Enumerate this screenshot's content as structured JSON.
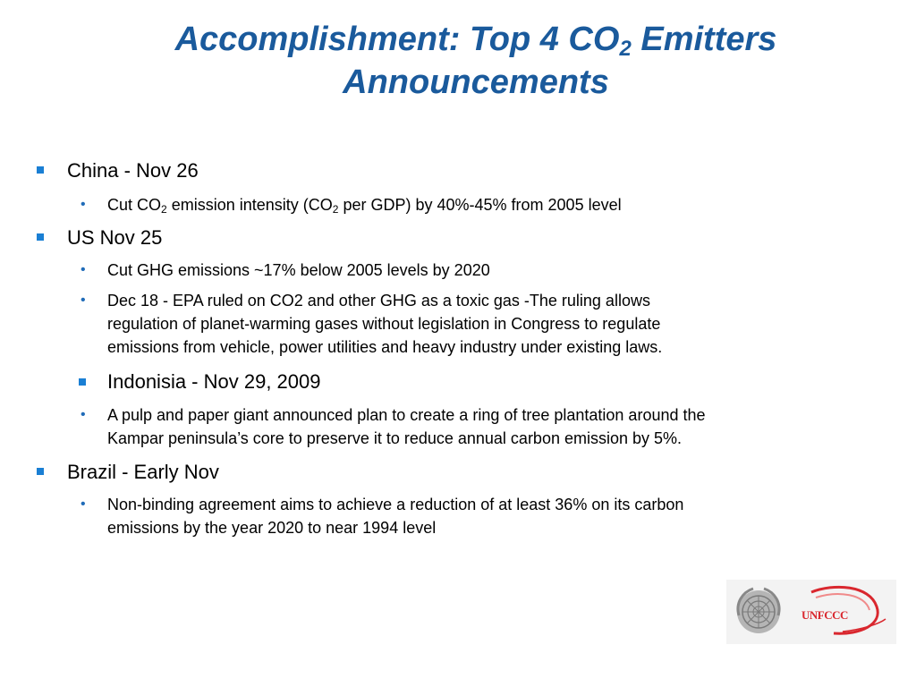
{
  "slide": {
    "title_part1": "Accomplishment: Top 4 CO",
    "title_sub": "2",
    "title_part2": " Emitters",
    "title_line2": "Announcements"
  },
  "items": [
    {
      "heading": "China - Nov 26",
      "bullets": [
        {
          "pre": "Cut CO",
          "sub1": "2",
          "mid": " emission intensity (CO",
          "sub2": "2",
          "post": "  per GDP) by 40%-45% from 2005 level"
        }
      ]
    },
    {
      "heading": "US Nov 25",
      "bullets": [
        {
          "text": "Cut GHG emissions ~17% below 2005 levels by 2020"
        },
        {
          "line1": "Dec 18 - EPA ruled on CO2 and other GHG as a toxic gas -The ruling allows",
          "line2": "regulation of planet-warming gases without legislation in Congress to regulate",
          "line3": "emissions from vehicle, power utilities and heavy industry under existing laws."
        }
      ]
    },
    {
      "heading": "Indonisia - Nov 29, 2009",
      "bullets": [
        {
          "line1": "A pulp and paper giant announced plan to create a ring of tree plantation around the",
          "line2": "Kampar peninsula’s core to preserve it to reduce annual carbon emission by 5%."
        }
      ]
    },
    {
      "heading": "Brazil - Early Nov",
      "bullets": [
        {
          "line1": "Non-binding agreement aims to achieve a reduction of at  least 36% on its carbon",
          "line2": "emissions by the year 2020 to near 1994 level"
        }
      ]
    }
  ],
  "logos": {
    "un_emblem": "un-emblem-icon",
    "unfccc_text": "UNFCCC"
  },
  "colors": {
    "title": "#1a5a9c",
    "bullet_square": "#1a7fd4",
    "unfccc_red": "#d9272e"
  }
}
